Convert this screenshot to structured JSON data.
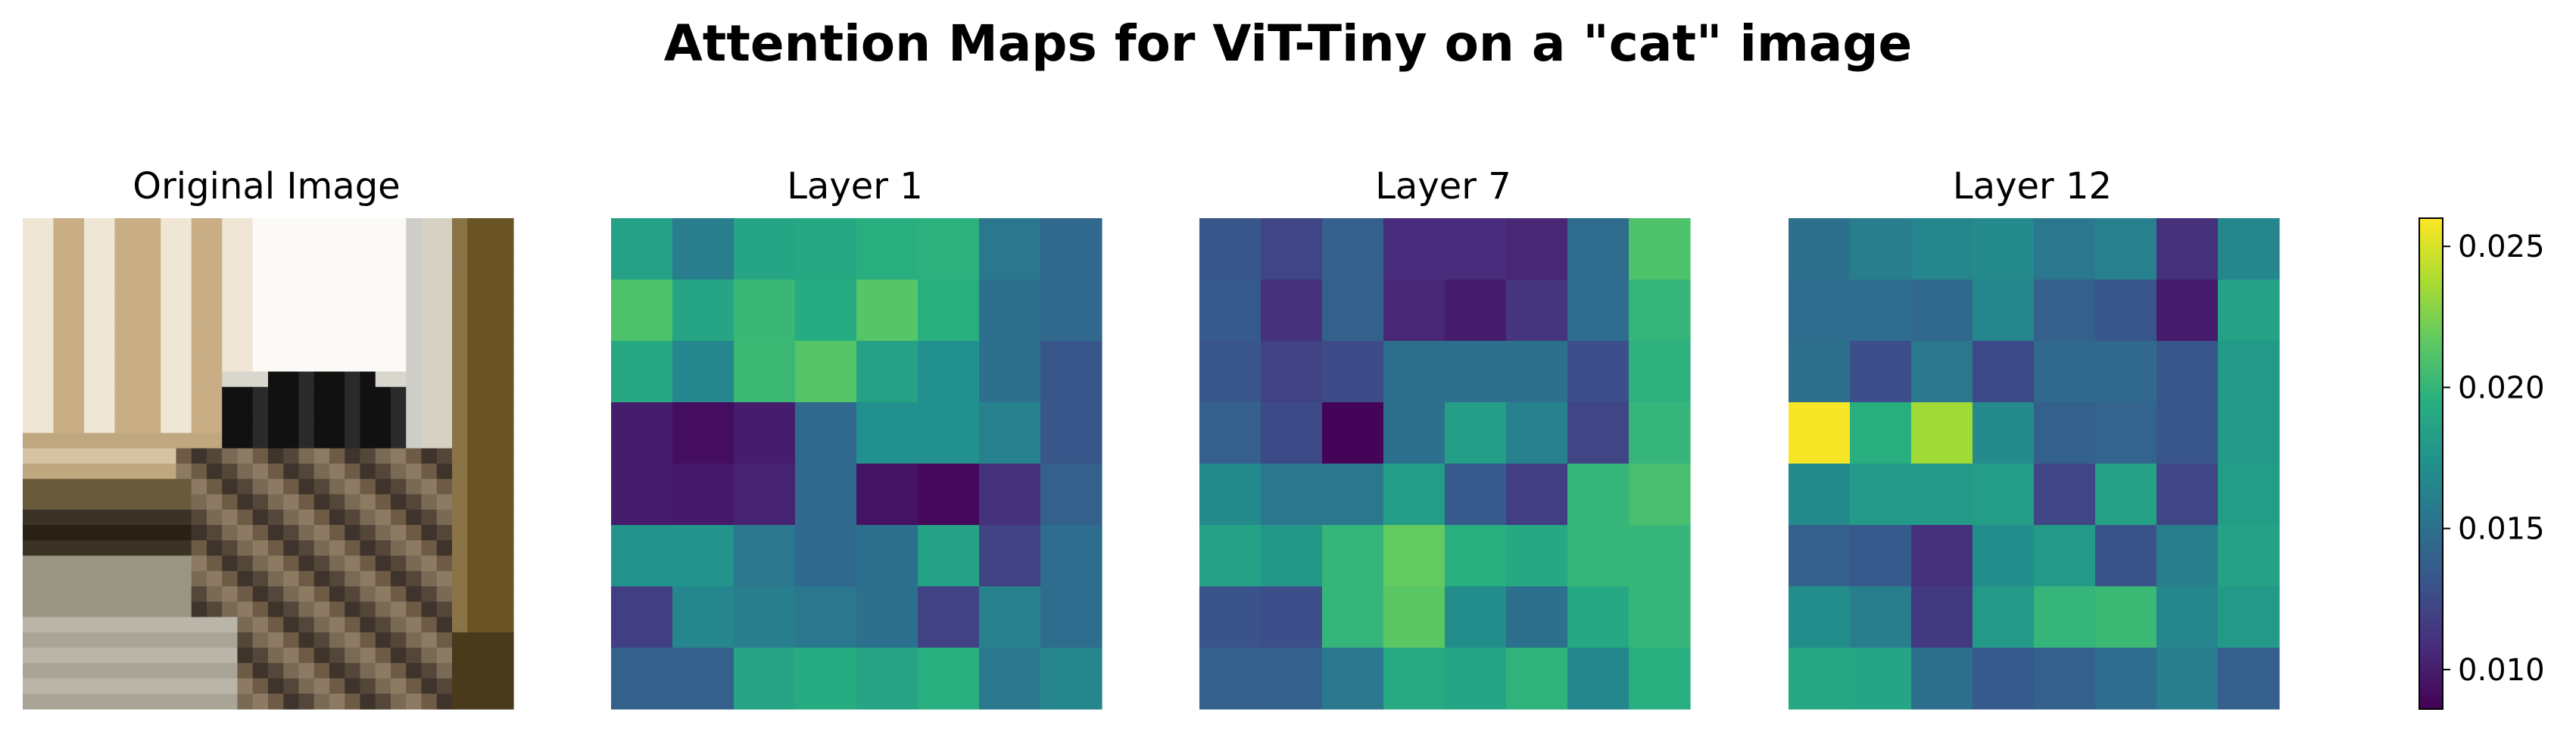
{
  "suptitle": "Attention Maps for ViT-Tiny on a \"cat\" image",
  "colormap": "viridis",
  "panel_titles": [
    "Original Image",
    "Layer 1",
    "Layer 7",
    "Layer 12"
  ],
  "original_image": {
    "title": "Original Image",
    "description_pixels": "32x32 low-resolution photo of a cat with curtains behind",
    "palette": {
      "curtain_light": "#efe6d6",
      "curtain_tan": "#c8ad85",
      "window": "#fbfaf6",
      "wood": "#6b5424",
      "black_cap": "#111111",
      "cat_brown": "#6e5b45",
      "floor": "#b9b5a8",
      "dark_band": "#2a2116"
    }
  },
  "chart_data": {
    "type": "heatmap",
    "title": "Attention Maps for ViT-Tiny on a \"cat\" image",
    "colorbar": {
      "vmin": 0.0086,
      "vmax": 0.026,
      "ticks": [
        0.01,
        0.015,
        0.02,
        0.025
      ],
      "tick_labels": [
        "0.010",
        "0.015",
        "0.020",
        "0.025"
      ]
    },
    "maps": [
      {
        "title": "Layer 1",
        "grid": [
          [
            0.0185,
            0.016,
            0.0188,
            0.019,
            0.0195,
            0.0196,
            0.0155,
            0.0145
          ],
          [
            0.021,
            0.0188,
            0.0202,
            0.0193,
            0.0213,
            0.0195,
            0.015,
            0.0145
          ],
          [
            0.019,
            0.0165,
            0.0203,
            0.0213,
            0.0185,
            0.0172,
            0.015,
            0.0132
          ],
          [
            0.01,
            0.0092,
            0.01,
            0.0145,
            0.0172,
            0.0172,
            0.0162,
            0.0132
          ],
          [
            0.01,
            0.0098,
            0.0103,
            0.0145,
            0.0095,
            0.009,
            0.011,
            0.014
          ],
          [
            0.0175,
            0.0175,
            0.0155,
            0.0145,
            0.015,
            0.0185,
            0.012,
            0.0148
          ],
          [
            0.0118,
            0.0165,
            0.016,
            0.0155,
            0.015,
            0.012,
            0.0162,
            0.0148
          ],
          [
            0.014,
            0.014,
            0.0187,
            0.0193,
            0.0187,
            0.0195,
            0.0155,
            0.0165
          ]
        ]
      },
      {
        "title": "Layer 7",
        "grid": [
          [
            0.0132,
            0.0122,
            0.0138,
            0.0108,
            0.0108,
            0.0105,
            0.0148,
            0.021
          ],
          [
            0.0135,
            0.011,
            0.014,
            0.0105,
            0.01,
            0.0112,
            0.0148,
            0.02
          ],
          [
            0.0132,
            0.012,
            0.0126,
            0.015,
            0.015,
            0.015,
            0.0128,
            0.0197
          ],
          [
            0.0138,
            0.0125,
            0.0088,
            0.015,
            0.0183,
            0.0162,
            0.0122,
            0.02
          ],
          [
            0.0168,
            0.0155,
            0.0155,
            0.0182,
            0.0135,
            0.0118,
            0.02,
            0.0208
          ],
          [
            0.0185,
            0.0178,
            0.02,
            0.0218,
            0.0195,
            0.019,
            0.02,
            0.02
          ],
          [
            0.013,
            0.0128,
            0.02,
            0.0215,
            0.017,
            0.015,
            0.019,
            0.02
          ],
          [
            0.0138,
            0.014,
            0.0155,
            0.0192,
            0.0188,
            0.0198,
            0.0165,
            0.0195
          ]
        ]
      },
      {
        "title": "Layer 12",
        "grid": [
          [
            0.015,
            0.016,
            0.0165,
            0.0168,
            0.0155,
            0.0162,
            0.011,
            0.0165
          ],
          [
            0.0148,
            0.0148,
            0.0145,
            0.0165,
            0.014,
            0.0132,
            0.01,
            0.0185
          ],
          [
            0.015,
            0.0128,
            0.0155,
            0.0125,
            0.0145,
            0.0145,
            0.0132,
            0.018
          ],
          [
            0.0258,
            0.0195,
            0.0235,
            0.0168,
            0.014,
            0.0142,
            0.0132,
            0.018
          ],
          [
            0.0168,
            0.018,
            0.018,
            0.0182,
            0.0122,
            0.0185,
            0.0122,
            0.0182
          ],
          [
            0.014,
            0.0135,
            0.011,
            0.017,
            0.018,
            0.013,
            0.016,
            0.0185
          ],
          [
            0.017,
            0.016,
            0.0115,
            0.018,
            0.02,
            0.0203,
            0.0165,
            0.018
          ],
          [
            0.019,
            0.0188,
            0.015,
            0.0135,
            0.014,
            0.0148,
            0.016,
            0.0138
          ]
        ]
      }
    ]
  }
}
